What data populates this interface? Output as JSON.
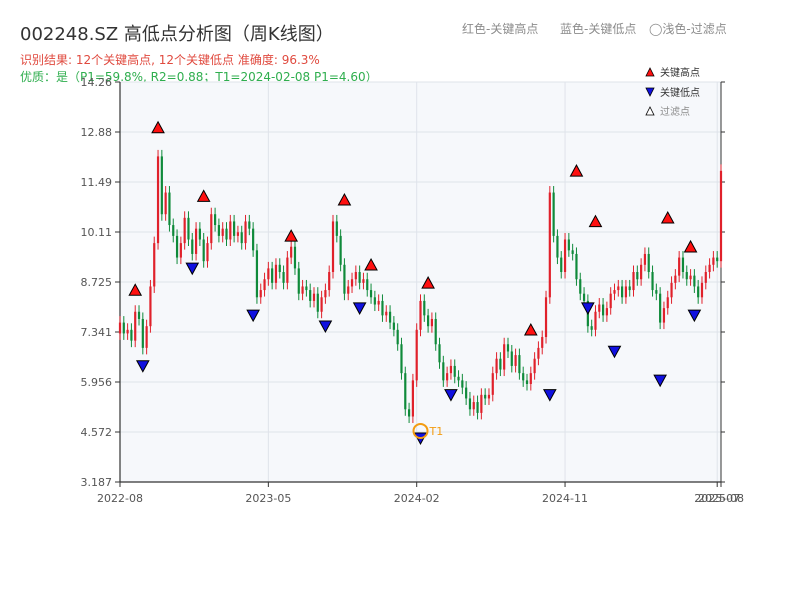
{
  "header": {
    "title": "002248.SZ 高低点分析图（周K线图）",
    "result_line": "识别结果: 12个关键高点, 12个关键低点   准确度: 96.3%",
    "quality_line": "优质：是（P1=59.8%, R2=0.88；T1=2024-02-08 P1=4.60）",
    "legend_top": [
      "红色-关键高点",
      "蓝色-关键低点",
      "◯浅色-过滤点"
    ]
  },
  "legend": {
    "high": "关键高点",
    "low": "关键低点",
    "filtered": "过滤点"
  },
  "colors": {
    "up": "#e0212b",
    "down": "#0f8a3a",
    "high_marker": "#ff1010",
    "low_marker": "#1010e0",
    "t1": "#f39c12"
  },
  "chart_data": {
    "type": "candlestick",
    "ylim": [
      3.187,
      14.26
    ],
    "y_ticks": [
      "3.187",
      "4.572",
      "5.956",
      "7.341",
      "8.725",
      "10.11",
      "11.49",
      "12.88",
      "14.26"
    ],
    "x_ticks": [
      {
        "t": 0,
        "label": "2022-08"
      },
      {
        "t": 39,
        "label": "2023-05"
      },
      {
        "t": 78,
        "label": "2024-02"
      },
      {
        "t": 117,
        "label": "2024-11"
      },
      {
        "t": 157,
        "label": "2025-07"
      },
      {
        "t": 158,
        "label": "2025-08"
      }
    ],
    "closes": [
      7.6,
      7.3,
      7.4,
      7.1,
      7.9,
      7.7,
      6.9,
      7.5,
      8.6,
      9.8,
      12.2,
      10.6,
      11.2,
      10.3,
      10.0,
      9.4,
      9.8,
      10.5,
      9.9,
      9.5,
      10.2,
      9.9,
      9.3,
      9.8,
      10.6,
      10.3,
      10.0,
      10.2,
      9.9,
      10.4,
      10.0,
      10.1,
      9.8,
      10.4,
      10.2,
      9.6,
      8.3,
      8.5,
      8.8,
      9.1,
      8.7,
      9.2,
      9.0,
      8.7,
      9.4,
      9.7,
      9.1,
      8.4,
      8.6,
      8.5,
      8.2,
      8.4,
      7.9,
      8.3,
      8.5,
      9.0,
      10.4,
      10.0,
      9.2,
      8.4,
      8.6,
      8.8,
      9.0,
      8.7,
      8.8,
      8.5,
      8.3,
      8.1,
      8.2,
      7.8,
      7.9,
      7.6,
      7.4,
      7.0,
      6.2,
      5.2,
      5.0,
      6.0,
      7.4,
      8.2,
      7.8,
      7.5,
      7.7,
      7.0,
      6.5,
      6.0,
      6.2,
      6.4,
      6.1,
      6.0,
      5.8,
      5.5,
      5.2,
      5.4,
      5.1,
      5.6,
      5.5,
      5.6,
      6.2,
      6.6,
      6.3,
      7.0,
      6.8,
      6.4,
      6.7,
      6.2,
      6.0,
      5.9,
      6.2,
      6.6,
      6.9,
      7.2,
      8.3,
      11.2,
      10.0,
      9.4,
      9.0,
      9.9,
      9.6,
      9.5,
      8.8,
      8.4,
      8.2,
      7.5,
      7.4,
      7.9,
      8.1,
      7.8,
      8.0,
      8.4,
      8.5,
      8.6,
      8.3,
      8.6,
      8.5,
      9.0,
      8.8,
      9.2,
      9.5,
      9.0,
      8.5,
      8.4,
      7.6,
      8.0,
      8.3,
      8.7,
      8.9,
      9.4,
      9.0,
      8.8,
      8.9,
      8.6,
      8.3,
      8.7,
      9.0,
      9.2,
      9.4,
      9.3,
      11.8
    ],
    "highs": [
      {
        "t": 4,
        "v": 8.3
      },
      {
        "t": 10,
        "v": 12.8
      },
      {
        "t": 22,
        "v": 10.9
      },
      {
        "t": 45,
        "v": 9.8
      },
      {
        "t": 59,
        "v": 10.8
      },
      {
        "t": 66,
        "v": 9.0
      },
      {
        "t": 81,
        "v": 8.5
      },
      {
        "t": 108,
        "v": 7.2
      },
      {
        "t": 120,
        "v": 11.6
      },
      {
        "t": 125,
        "v": 10.2
      },
      {
        "t": 144,
        "v": 10.3
      },
      {
        "t": 150,
        "v": 9.5
      }
    ],
    "lows": [
      {
        "t": 6,
        "v": 6.6
      },
      {
        "t": 19,
        "v": 9.3
      },
      {
        "t": 35,
        "v": 8.0
      },
      {
        "t": 54,
        "v": 7.7
      },
      {
        "t": 63,
        "v": 8.2
      },
      {
        "t": 79,
        "v": 4.6
      },
      {
        "t": 87,
        "v": 5.8
      },
      {
        "t": 113,
        "v": 5.8
      },
      {
        "t": 123,
        "v": 8.2
      },
      {
        "t": 130,
        "v": 7.0
      },
      {
        "t": 142,
        "v": 6.2
      },
      {
        "t": 151,
        "v": 8.0
      }
    ],
    "t1": {
      "t": 79,
      "v": 4.6,
      "label": "T1"
    }
  }
}
